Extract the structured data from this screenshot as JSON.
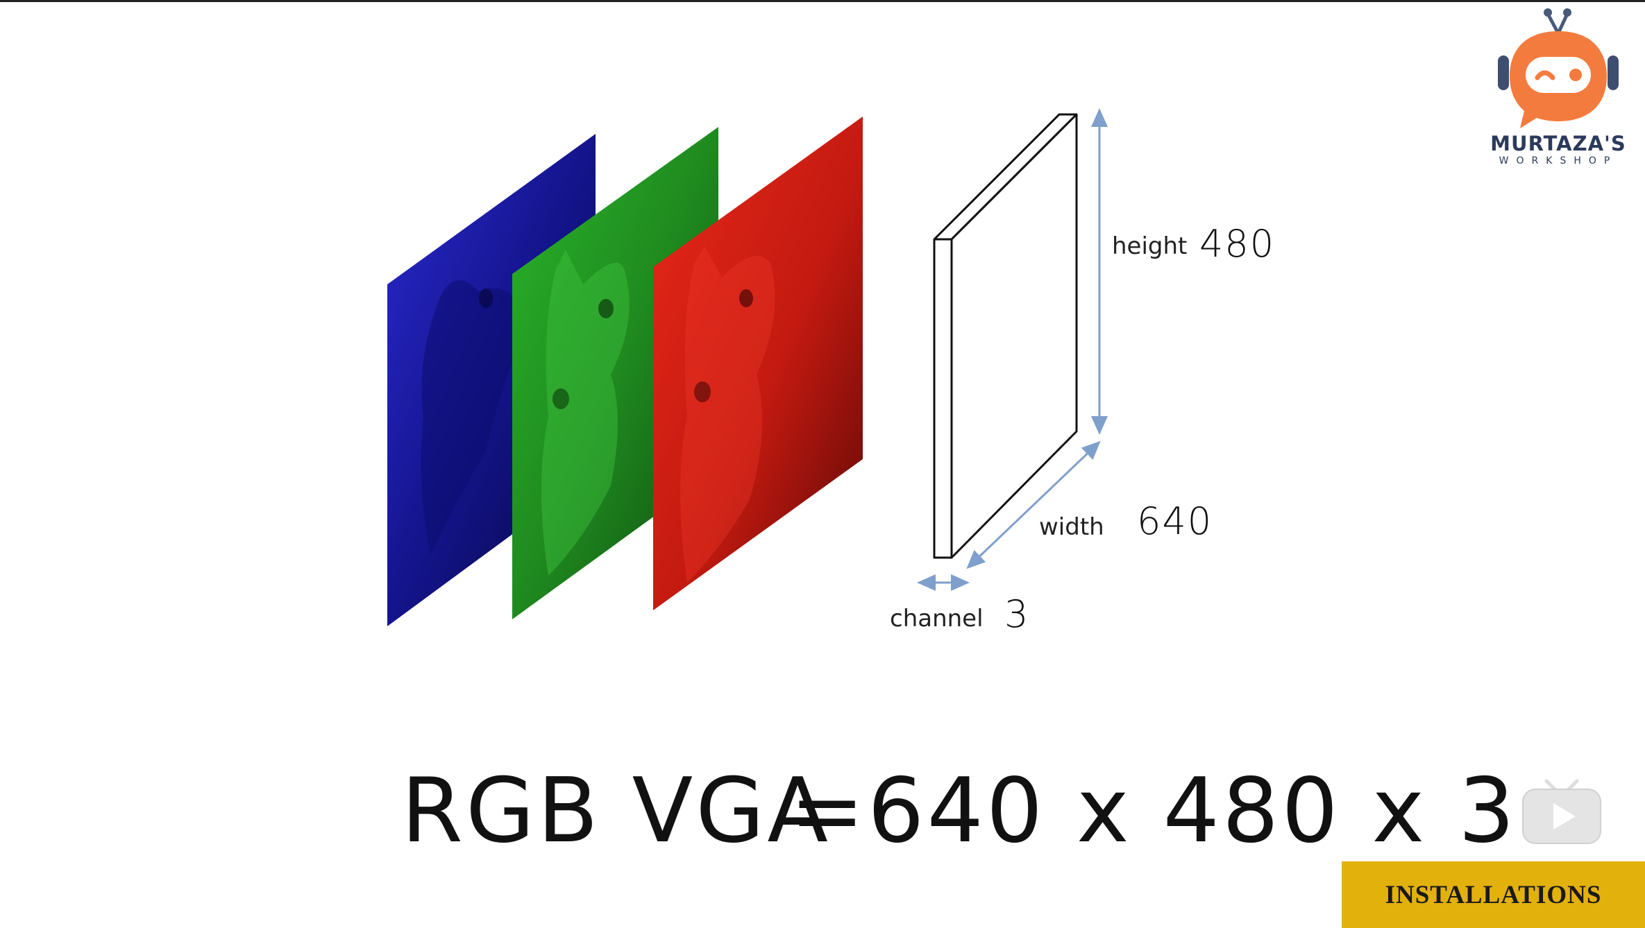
{
  "diagram": {
    "labels": {
      "height": "height",
      "width": "width",
      "channel": "channel"
    },
    "values": {
      "height": "480",
      "width": "640",
      "channel": "3"
    },
    "channel_colors": {
      "blue": "#1a1aa0",
      "green": "#1e8f1e",
      "red": "#c8150e"
    },
    "arrow_color": "#7f9fcc"
  },
  "formula": {
    "left": "RGB VGA",
    "equals": "=",
    "right": "640 x 480 x 3"
  },
  "logo": {
    "title": "MURTAZA'S",
    "subtitle": "WORKSHOP",
    "icon": "robot-icon",
    "accent": "#f47b3e"
  },
  "player": {
    "icon": "play-icon"
  },
  "tag": {
    "label": "INSTALLATIONS",
    "color": "#e3b10c"
  }
}
